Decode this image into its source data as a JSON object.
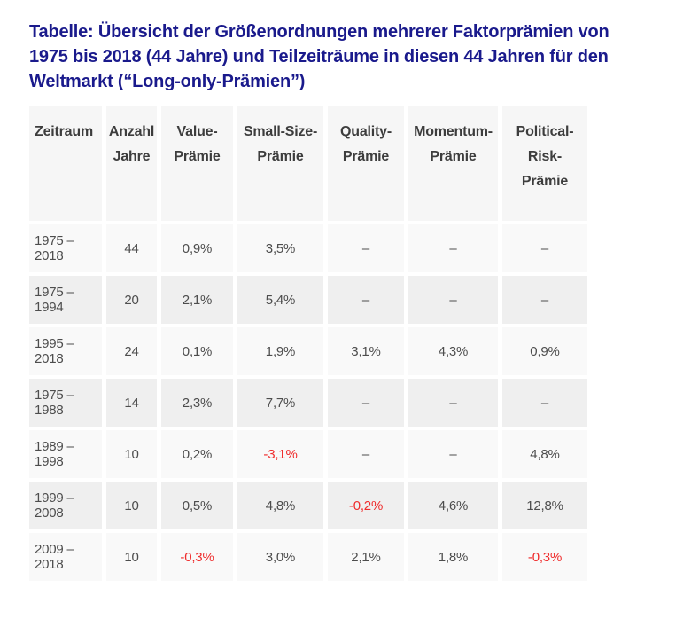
{
  "title": "Tabelle: Übersicht der Größenordnungen mehrerer Faktorprämien von\n1975 bis 2018 (44 Jahre) und Teilzeiträume in diesen 44 Jahren für den\nWeltmarkt (“Long-only-Prämien”)",
  "colors": {
    "title": "#1a1a8c",
    "header_text": "#3d3d3d",
    "cell_text": "#4d4d4d",
    "negative_text": "#ef2c2c",
    "header_bg": "#f6f6f6",
    "row_odd_bg": "#f9f9f9",
    "row_even_bg": "#efefef"
  },
  "table": {
    "headers": [
      "Zeitraum",
      "Anzahl\nJahre",
      "Value-\nPrämie",
      "Small-Size-\nPrämie",
      "Quality-\nPrämie",
      "Momentum-\nPrämie",
      "Political-\nRisk-\nPrämie"
    ],
    "rows": [
      [
        "1975 – 2018",
        "44",
        "0,9%",
        "3,5%",
        "–",
        "–",
        "–"
      ],
      [
        "1975 – 1994",
        "20",
        "2,1%",
        "5,4%",
        "–",
        "–",
        "–"
      ],
      [
        "1995 – 2018",
        "24",
        "0,1%",
        "1,9%",
        "3,1%",
        "4,3%",
        "0,9%"
      ],
      [
        "1975 – 1988",
        "14",
        "2,3%",
        "7,7%",
        "–",
        "–",
        "–"
      ],
      [
        "1989 – 1998",
        "10",
        "0,2%",
        "-3,1%",
        "–",
        "–",
        "4,8%"
      ],
      [
        "1999 – 2008",
        "10",
        "0,5%",
        "4,8%",
        "-0,2%",
        "4,6%",
        "12,8%"
      ],
      [
        "2009 – 2018",
        "10",
        "-0,3%",
        "3,0%",
        "2,1%",
        "1,8%",
        "-0,3%"
      ]
    ]
  }
}
